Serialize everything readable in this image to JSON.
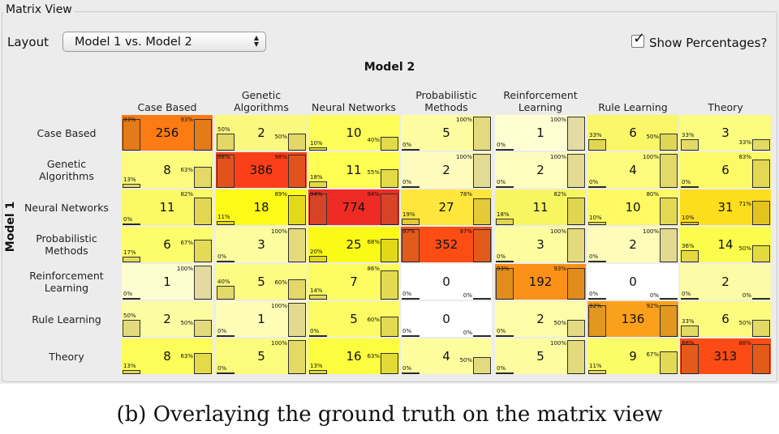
{
  "panel": {
    "title": "Matrix View",
    "layout_label": "Layout",
    "layout_value": "Model 1 vs. Model 2",
    "show_percentages_label": "Show Percentages?",
    "show_percentages_checked": true,
    "checkmark_glyph": "✓",
    "select_arrows_glyph": "▲▼"
  },
  "matrix": {
    "column_axis_label": "Model 2",
    "row_axis_label": "Model 1",
    "columns": [
      "Case Based",
      "Genetic\nAlgorithms",
      "Neural Networks",
      "Probabilistic\nMethods",
      "Reinforcement\nLearning",
      "Rule Learning",
      "Theory"
    ],
    "rows": [
      "Case Based",
      "Genetic\nAlgorithms",
      "Neural Networks",
      "Probabilistic\nMethods",
      "Reinforcement\nLearning",
      "Rule Learning",
      "Theory"
    ],
    "counts": [
      [
        "256",
        "2",
        "10",
        "5",
        "1",
        "6",
        "3"
      ],
      [
        "8",
        "386",
        "11",
        "2",
        "2",
        "4",
        "6"
      ],
      [
        "11",
        "18",
        "774",
        "27",
        "11",
        "10",
        "31"
      ],
      [
        "6",
        "3",
        "25",
        "352",
        "3",
        "2",
        "14"
      ],
      [
        "1",
        "5",
        "7",
        "0",
        "192",
        "0",
        "2"
      ],
      [
        "2",
        "1",
        "5",
        "0",
        "2",
        "136",
        "6"
      ],
      [
        "8",
        "5",
        "16",
        "4",
        "5",
        "9",
        "313"
      ]
    ],
    "left_pct": [
      [
        "93%",
        "50%",
        "10%",
        "0%",
        "0%",
        "33%",
        "33%"
      ],
      [
        "13%",
        "98%",
        "18%",
        "0%",
        "0%",
        "0%",
        "0%"
      ],
      [
        "0%",
        "11%",
        "94%",
        "19%",
        "18%",
        "10%",
        "10%"
      ],
      [
        "17%",
        "0%",
        "20%",
        "97%",
        "0%",
        "0%",
        "36%"
      ],
      [
        "0%",
        "40%",
        "14%",
        "0%",
        "93%",
        "0%",
        "0%"
      ],
      [
        "50%",
        "0%",
        "0%",
        "0%",
        "0%",
        "92%",
        "33%"
      ],
      [
        "13%",
        "0%",
        "13%",
        "0%",
        "0%",
        "11%",
        "88%"
      ]
    ],
    "right_pct": [
      [
        "93%",
        "50%",
        "40%",
        "100%",
        "100%",
        "50%",
        "33%"
      ],
      [
        "63%",
        "98%",
        "55%",
        "100%",
        "100%",
        "100%",
        "83%"
      ],
      [
        "82%",
        "89%",
        "94%",
        "78%",
        "82%",
        "80%",
        "71%"
      ],
      [
        "67%",
        "100%",
        "68%",
        "97%",
        "100%",
        "100%",
        "50%"
      ],
      [
        "100%",
        "60%",
        "86%",
        "0%",
        "93%",
        "0%",
        "0%"
      ],
      [
        "50%",
        "100%",
        "60%",
        "0%",
        "50%",
        "92%",
        "50%"
      ],
      [
        "63%",
        "100%",
        "63%",
        "50%",
        "100%",
        "67%",
        "88%"
      ]
    ],
    "cell_colors": [
      [
        "#fc7b12",
        "#fbf880",
        "#fcfd58",
        "#fdfca0",
        "#fefed2",
        "#f9f767",
        "#fcfc7e"
      ],
      [
        "#fcfb7c",
        "#fb4019",
        "#fdfd52",
        "#fdfcbd",
        "#fdfdbe",
        "#fcfb7e",
        "#fcfa66"
      ],
      [
        "#fbf965",
        "#fcfb17",
        "#ef2b25",
        "#fee63c",
        "#f8f660",
        "#fdfa63",
        "#fdde1c"
      ],
      [
        "#fdfd6b",
        "#fdfd9f",
        "#fbfa16",
        "#fc4d15",
        "#fdfda0",
        "#fdfcb8",
        "#fcfc4c"
      ],
      [
        "#fdfdd0",
        "#fcfb82",
        "#fcfc61",
        "#ffffff",
        "#fb9118",
        "#ffffff",
        "#fcfba6"
      ],
      [
        "#fcfca0",
        "#fdfdb8",
        "#fcfb64",
        "#ffffff",
        "#fdfca7",
        "#fba01b",
        "#fcfb7d"
      ],
      [
        "#fcfd58",
        "#fbfc7c",
        "#fcfd3e",
        "#fdfd9e",
        "#fdfd9f",
        "#fbfd67",
        "#fc4b15"
      ]
    ]
  },
  "caption": "(b) Overlaying the ground truth on the matrix view"
}
